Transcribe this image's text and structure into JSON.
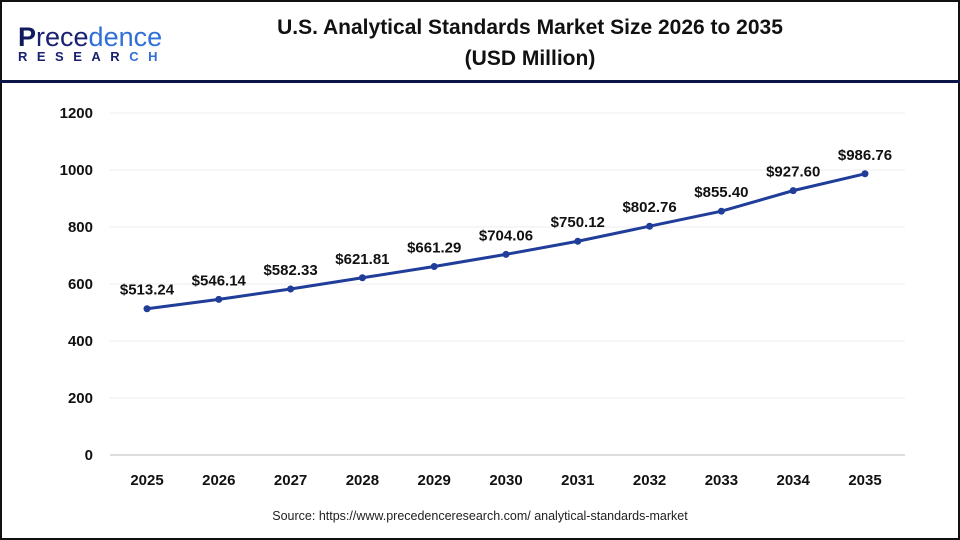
{
  "logo": {
    "line1_p": "P",
    "line1_black": "rece",
    "line1_blue": "dence",
    "line2_black": "RESEAR",
    "line2_blue": "CH"
  },
  "title_line1": "U.S. Analytical Standards Market Size 2026 to 2035",
  "title_line2": "(USD Million)",
  "source": "Source: https://www.precedenceresearch.com/ analytical-standards-market",
  "chart_data": {
    "type": "line",
    "title": "U.S. Analytical Standards Market Size 2026 to 2035 (USD Million)",
    "categories": [
      "2025",
      "2026",
      "2027",
      "2028",
      "2029",
      "2030",
      "2031",
      "2032",
      "2033",
      "2034",
      "2035"
    ],
    "values": [
      513.24,
      546.14,
      582.33,
      621.81,
      661.29,
      704.06,
      750.12,
      802.76,
      855.4,
      927.6,
      986.76
    ],
    "data_labels": [
      "$513.24",
      "$546.14",
      "$582.33",
      "$621.81",
      "$661.29",
      "$704.06",
      "$750.12",
      "$802.76",
      "$855.40",
      "$927.60",
      "$986.76"
    ],
    "yticks": [
      "0",
      "200",
      "400",
      "600",
      "800",
      "1000",
      "1200"
    ],
    "ylim": [
      0,
      1200
    ],
    "grid": true,
    "line_color": "#1f3d99",
    "xlabel": "",
    "ylabel": ""
  }
}
